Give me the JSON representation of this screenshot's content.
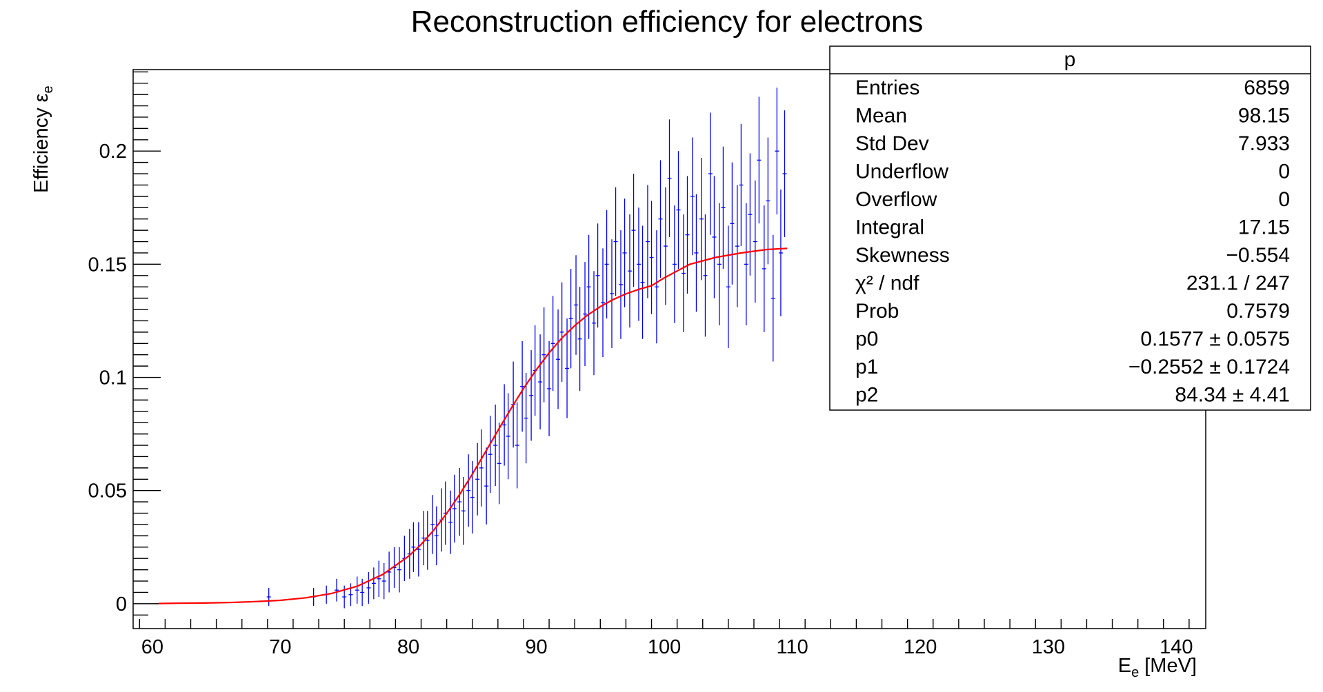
{
  "chart_data": {
    "type": "scatter",
    "title": "Reconstruction efficiency for electrons",
    "xlabel": {
      "main": "E",
      "sub": "e",
      "rest": " [MeV]"
    },
    "ylabel": {
      "main": "Efficiency ε",
      "sub": "e"
    },
    "xlim": [
      58.5,
      142.3
    ],
    "ylim": [
      -0.011,
      0.236
    ],
    "x_ticks": [
      60,
      70,
      80,
      90,
      100,
      110,
      120,
      130,
      140
    ],
    "x_tick_labels": [
      "60",
      "70",
      "80",
      "90",
      "100",
      "110",
      "120",
      "130",
      "140"
    ],
    "y_ticks": [
      0,
      0.05,
      0.1,
      0.15,
      0.2
    ],
    "y_tick_labels": [
      "0",
      "0.05",
      "0.1",
      "0.15",
      "0.2"
    ],
    "grid": false,
    "series": [
      {
        "kind": "points_with_errors",
        "color": "#0000ff",
        "x": [
          69.1,
          72.6,
          73.6,
          74.4,
          75.0,
          75.5,
          76.0,
          76.4,
          76.9,
          77.3,
          77.7,
          78.1,
          78.5,
          78.9,
          79.3,
          79.7,
          80.1,
          80.4,
          80.8,
          81.2,
          81.5,
          81.9,
          82.2,
          82.6,
          82.9,
          83.3,
          83.6,
          84.0,
          84.3,
          84.7,
          85.0,
          85.4,
          85.7,
          86.1,
          86.4,
          86.8,
          87.1,
          87.5,
          87.8,
          88.2,
          88.5,
          88.9,
          89.2,
          89.6,
          89.9,
          90.3,
          90.6,
          91.0,
          91.3,
          91.7,
          92.0,
          92.4,
          92.7,
          93.1,
          93.4,
          93.8,
          94.1,
          94.5,
          94.8,
          95.2,
          95.5,
          95.9,
          96.2,
          96.6,
          96.9,
          97.3,
          97.6,
          98.0,
          98.3,
          98.7,
          99.0,
          99.4,
          99.7,
          100.1,
          100.4,
          100.8,
          101.1,
          101.5,
          101.8,
          102.2,
          102.5,
          102.9,
          103.2,
          103.6,
          103.9,
          104.3,
          104.6,
          105.0,
          105.3,
          105.7,
          106.0,
          106.4,
          106.7,
          107.1,
          107.4,
          107.8,
          108.1,
          108.5,
          108.8,
          109.1,
          109.4
        ],
        "y": [
          0.003,
          0.003,
          0.004,
          0.006,
          0.003,
          0.004,
          0.006,
          0.005,
          0.007,
          0.009,
          0.011,
          0.01,
          0.014,
          0.016,
          0.015,
          0.02,
          0.022,
          0.025,
          0.024,
          0.029,
          0.028,
          0.035,
          0.03,
          0.037,
          0.04,
          0.036,
          0.042,
          0.045,
          0.041,
          0.05,
          0.047,
          0.055,
          0.06,
          0.052,
          0.066,
          0.07,
          0.062,
          0.079,
          0.074,
          0.088,
          0.07,
          0.096,
          0.082,
          0.092,
          0.103,
          0.098,
          0.11,
          0.095,
          0.115,
          0.108,
          0.12,
          0.104,
          0.126,
          0.132,
          0.117,
          0.128,
          0.14,
          0.124,
          0.145,
          0.133,
          0.15,
          0.137,
          0.16,
          0.141,
          0.155,
          0.147,
          0.165,
          0.15,
          0.142,
          0.16,
          0.153,
          0.14,
          0.17,
          0.158,
          0.188,
          0.15,
          0.174,
          0.146,
          0.163,
          0.18,
          0.155,
          0.17,
          0.145,
          0.19,
          0.162,
          0.15,
          0.175,
          0.14,
          0.168,
          0.158,
          0.185,
          0.15,
          0.172,
          0.16,
          0.196,
          0.148,
          0.178,
          0.135,
          0.2,
          0.155,
          0.19
        ],
        "y_err": [
          0.004,
          0.004,
          0.004,
          0.005,
          0.005,
          0.005,
          0.006,
          0.006,
          0.007,
          0.007,
          0.008,
          0.008,
          0.009,
          0.009,
          0.01,
          0.01,
          0.011,
          0.011,
          0.012,
          0.012,
          0.013,
          0.013,
          0.013,
          0.014,
          0.014,
          0.014,
          0.015,
          0.015,
          0.015,
          0.016,
          0.016,
          0.016,
          0.017,
          0.017,
          0.017,
          0.018,
          0.018,
          0.018,
          0.019,
          0.019,
          0.019,
          0.02,
          0.02,
          0.02,
          0.02,
          0.021,
          0.021,
          0.021,
          0.021,
          0.022,
          0.022,
          0.022,
          0.022,
          0.022,
          0.023,
          0.023,
          0.023,
          0.023,
          0.023,
          0.024,
          0.024,
          0.024,
          0.024,
          0.024,
          0.024,
          0.025,
          0.025,
          0.025,
          0.025,
          0.025,
          0.025,
          0.025,
          0.026,
          0.026,
          0.026,
          0.026,
          0.026,
          0.026,
          0.026,
          0.026,
          0.026,
          0.027,
          0.027,
          0.027,
          0.027,
          0.027,
          0.027,
          0.027,
          0.027,
          0.027,
          0.027,
          0.027,
          0.027,
          0.027,
          0.028,
          0.028,
          0.028,
          0.028,
          0.028,
          0.028,
          0.028
        ]
      },
      {
        "kind": "fit_curve",
        "color": "#ff0000",
        "x": [
          60.5,
          62,
          64,
          66,
          68,
          70,
          72,
          74,
          76,
          78,
          80,
          81,
          82,
          83,
          84,
          85,
          86,
          87,
          88,
          89,
          90,
          91,
          92,
          93,
          94,
          95,
          96,
          97,
          98,
          99,
          100,
          101,
          102,
          104,
          106,
          108,
          109.6
        ],
        "y": [
          0.0001,
          0.0002,
          0.0003,
          0.0005,
          0.0009,
          0.0015,
          0.0026,
          0.0045,
          0.0077,
          0.0129,
          0.0209,
          0.0262,
          0.0326,
          0.0399,
          0.0482,
          0.0572,
          0.0668,
          0.0765,
          0.086,
          0.0951,
          0.1034,
          0.1109,
          0.1174,
          0.1229,
          0.1275,
          0.1313,
          0.1344,
          0.1369,
          0.1389,
          0.1405,
          0.144,
          0.147,
          0.15,
          0.153,
          0.155,
          0.1565,
          0.157
        ]
      }
    ]
  },
  "stats_box": {
    "title": "p",
    "rows": [
      {
        "label": "Entries",
        "value": "6859"
      },
      {
        "label": "Mean",
        "value": "98.15"
      },
      {
        "label": "Std Dev",
        "value": "7.933"
      },
      {
        "label": "Underflow",
        "value": "0"
      },
      {
        "label": "Overflow",
        "value": "0"
      },
      {
        "label": "Integral",
        "value": "17.15"
      },
      {
        "label": "Skewness",
        "value": "−0.554"
      },
      {
        "label": "χ² / ndf",
        "value": "231.1 / 247"
      },
      {
        "label": "Prob",
        "value": "0.7579"
      },
      {
        "label": "p0",
        "value": "0.1577 ± 0.0575"
      },
      {
        "label": "p1",
        "value": "−0.2552 ± 0.1724"
      },
      {
        "label": "p2",
        "value": "84.34 ± 4.41"
      }
    ]
  }
}
